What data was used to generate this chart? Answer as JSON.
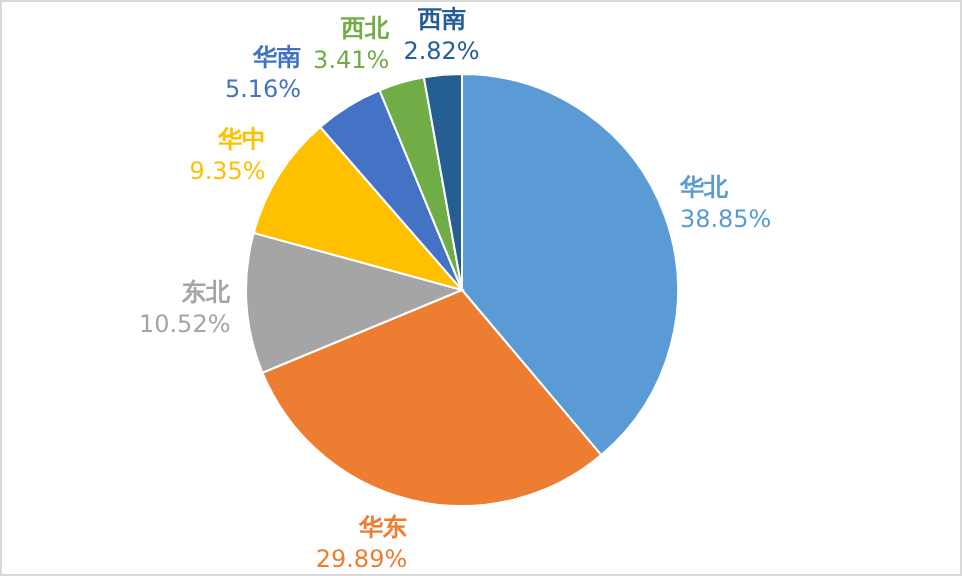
{
  "chart_data": {
    "type": "pie",
    "categories": [
      "华北",
      "华东",
      "东北",
      "华中",
      "华南",
      "西北",
      "西南"
    ],
    "values": [
      38.85,
      29.89,
      10.52,
      9.35,
      5.16,
      3.41,
      2.82
    ],
    "value_labels": [
      "38.85%",
      "29.89%",
      "10.52%",
      "9.35%",
      "5.16%",
      "3.41%",
      "2.82%"
    ],
    "colors": [
      "#5b9bd5",
      "#ed7d31",
      "#a5a5a5",
      "#ffc000",
      "#4472c4",
      "#70ad47",
      "#255e91"
    ],
    "legend": false
  }
}
